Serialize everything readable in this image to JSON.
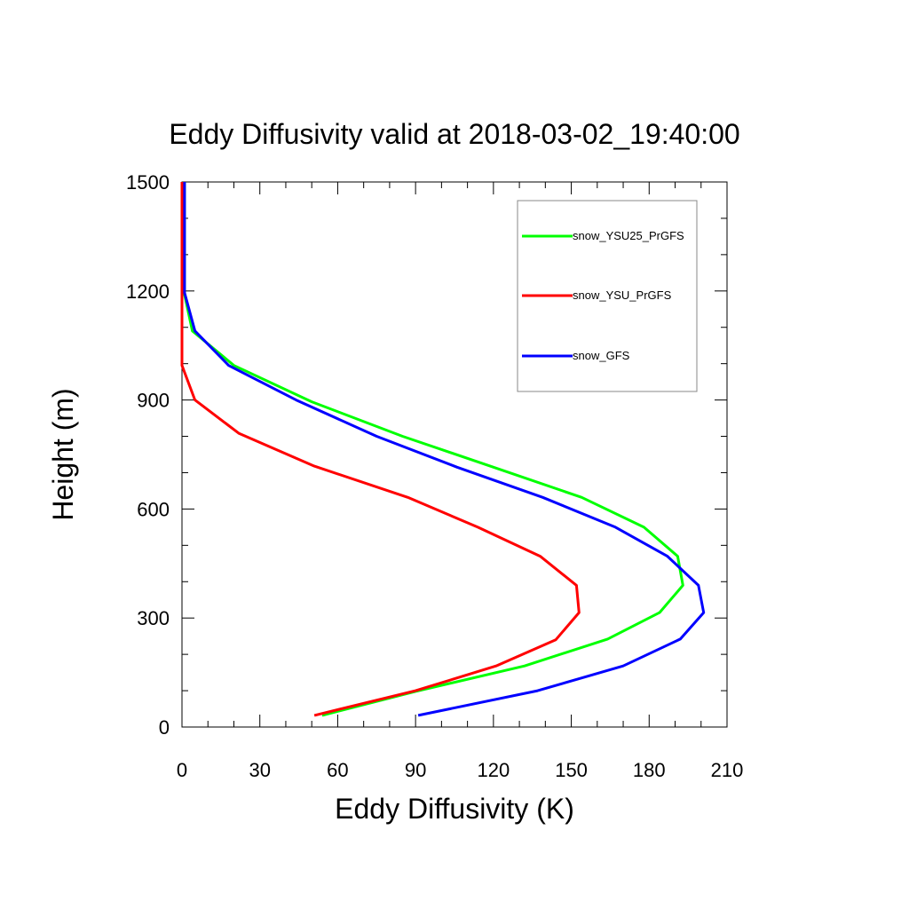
{
  "chart_data": {
    "type": "line",
    "title": "Eddy Diffusivity valid at 2018-03-02_19:40:00",
    "xlabel": "Eddy Diffusivity (K)",
    "ylabel": "Height (m)",
    "xlim": [
      0,
      210
    ],
    "ylim": [
      0,
      1500
    ],
    "xticks": [
      "0",
      "30",
      "60",
      "90",
      "120",
      "150",
      "180",
      "210"
    ],
    "yticks": [
      "0",
      "300",
      "600",
      "900",
      "1200",
      "1500"
    ],
    "legend_position": "top-right",
    "series": [
      {
        "name": "snow_YSU25_PrGFS",
        "color": "#00ff00",
        "points": [
          [
            54,
            32
          ],
          [
            90,
            98
          ],
          [
            132,
            168
          ],
          [
            164,
            242
          ],
          [
            184,
            315
          ],
          [
            193,
            390
          ],
          [
            191,
            470
          ],
          [
            178,
            550
          ],
          [
            154,
            632
          ],
          [
            120,
            715
          ],
          [
            85,
            800
          ],
          [
            50,
            895
          ],
          [
            20,
            995
          ],
          [
            4,
            1090
          ],
          [
            1,
            1190
          ],
          [
            1,
            1300
          ],
          [
            1,
            1400
          ],
          [
            1,
            1500
          ]
        ]
      },
      {
        "name": "snow_YSU_PrGFS",
        "color": "#ff0000",
        "points": [
          [
            51,
            32
          ],
          [
            90,
            100
          ],
          [
            121,
            168
          ],
          [
            144,
            240
          ],
          [
            153,
            315
          ],
          [
            152,
            390
          ],
          [
            138,
            470
          ],
          [
            114,
            550
          ],
          [
            87,
            632
          ],
          [
            51,
            718
          ],
          [
            22,
            808
          ],
          [
            5,
            900
          ],
          [
            0,
            995
          ],
          [
            0,
            1090
          ],
          [
            0,
            1190
          ],
          [
            0,
            1300
          ],
          [
            0,
            1400
          ],
          [
            0,
            1500
          ]
        ]
      },
      {
        "name": "snow_GFS",
        "color": "#0000ff",
        "points": [
          [
            91,
            32
          ],
          [
            137,
            100
          ],
          [
            170,
            168
          ],
          [
            192,
            242
          ],
          [
            201,
            315
          ],
          [
            199,
            390
          ],
          [
            187,
            470
          ],
          [
            167,
            550
          ],
          [
            139,
            632
          ],
          [
            106,
            715
          ],
          [
            75,
            800
          ],
          [
            44,
            900
          ],
          [
            18,
            995
          ],
          [
            5,
            1090
          ],
          [
            1,
            1195
          ],
          [
            1,
            1300
          ],
          [
            1,
            1400
          ],
          [
            1,
            1500
          ]
        ]
      }
    ]
  }
}
